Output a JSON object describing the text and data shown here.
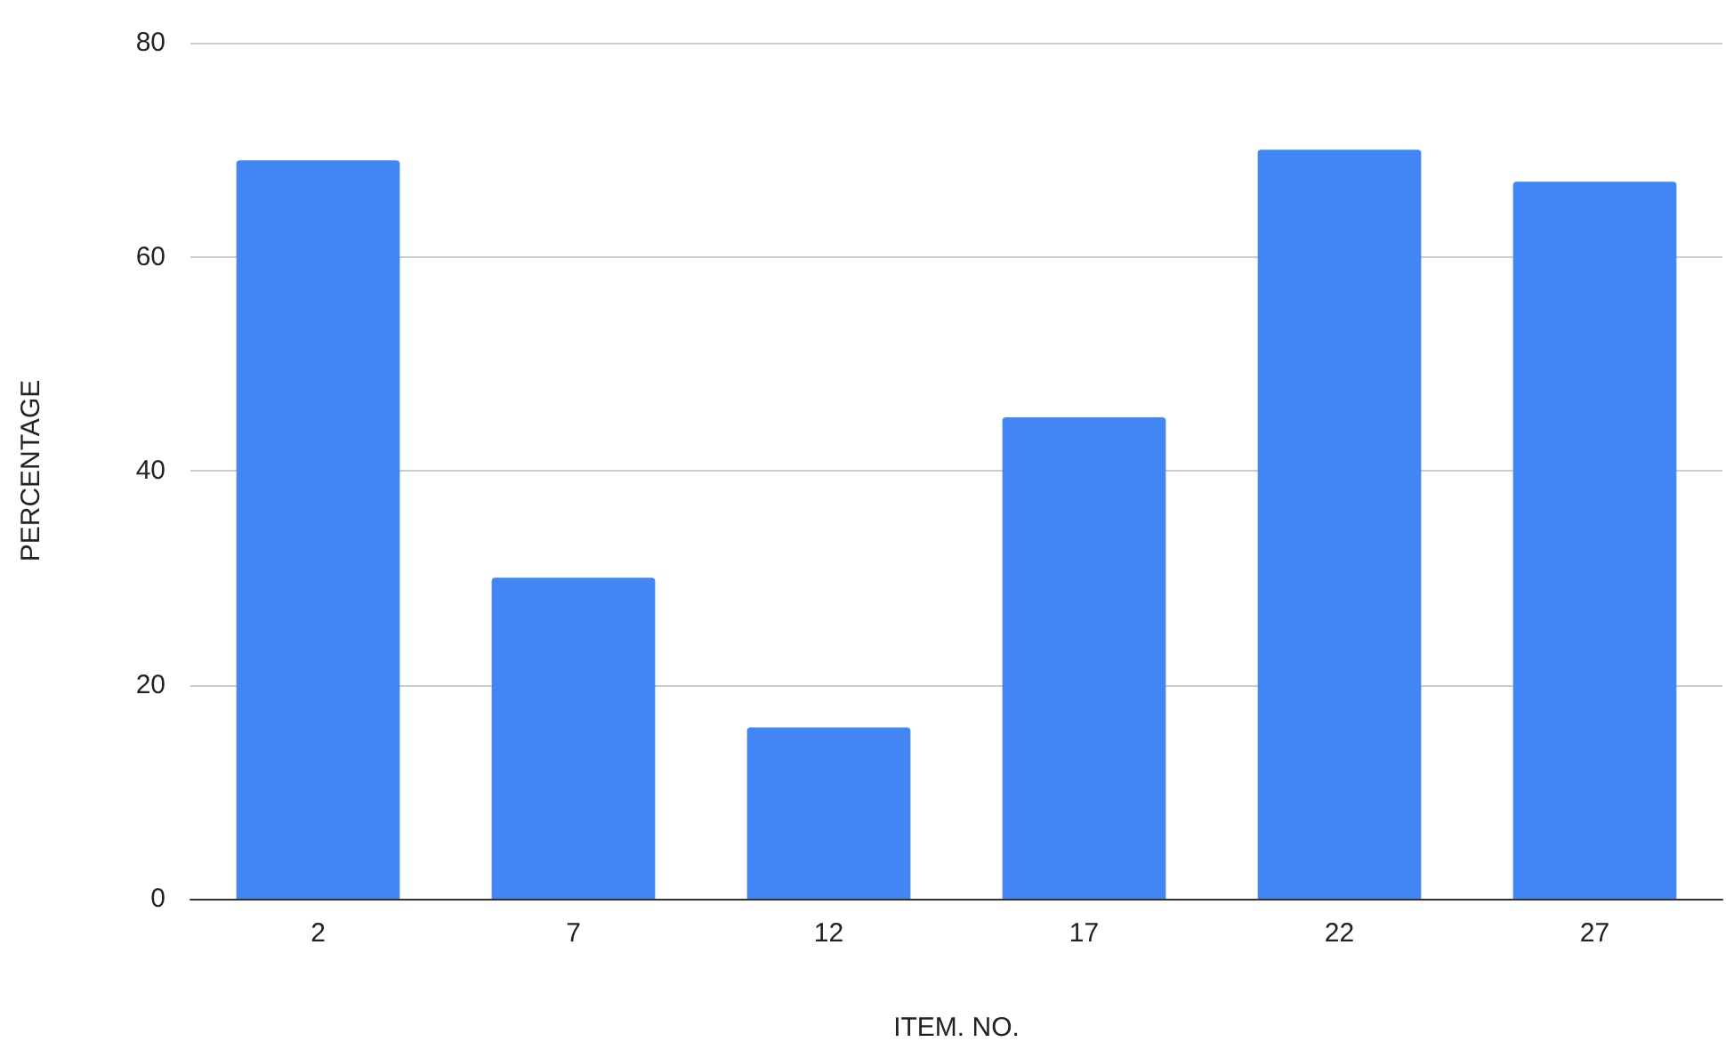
{
  "chart_data": {
    "type": "bar",
    "xlabel": "ITEM. NO.",
    "ylabel": "PERCENTAGE",
    "categories": [
      "2",
      "7",
      "12",
      "17",
      "22",
      "27"
    ],
    "values": [
      69,
      30,
      16,
      45,
      70,
      67
    ],
    "color": "#4285f4",
    "ylim": [
      0,
      80
    ],
    "yticks": [
      0,
      20,
      40,
      60,
      80
    ],
    "grid": "y"
  }
}
